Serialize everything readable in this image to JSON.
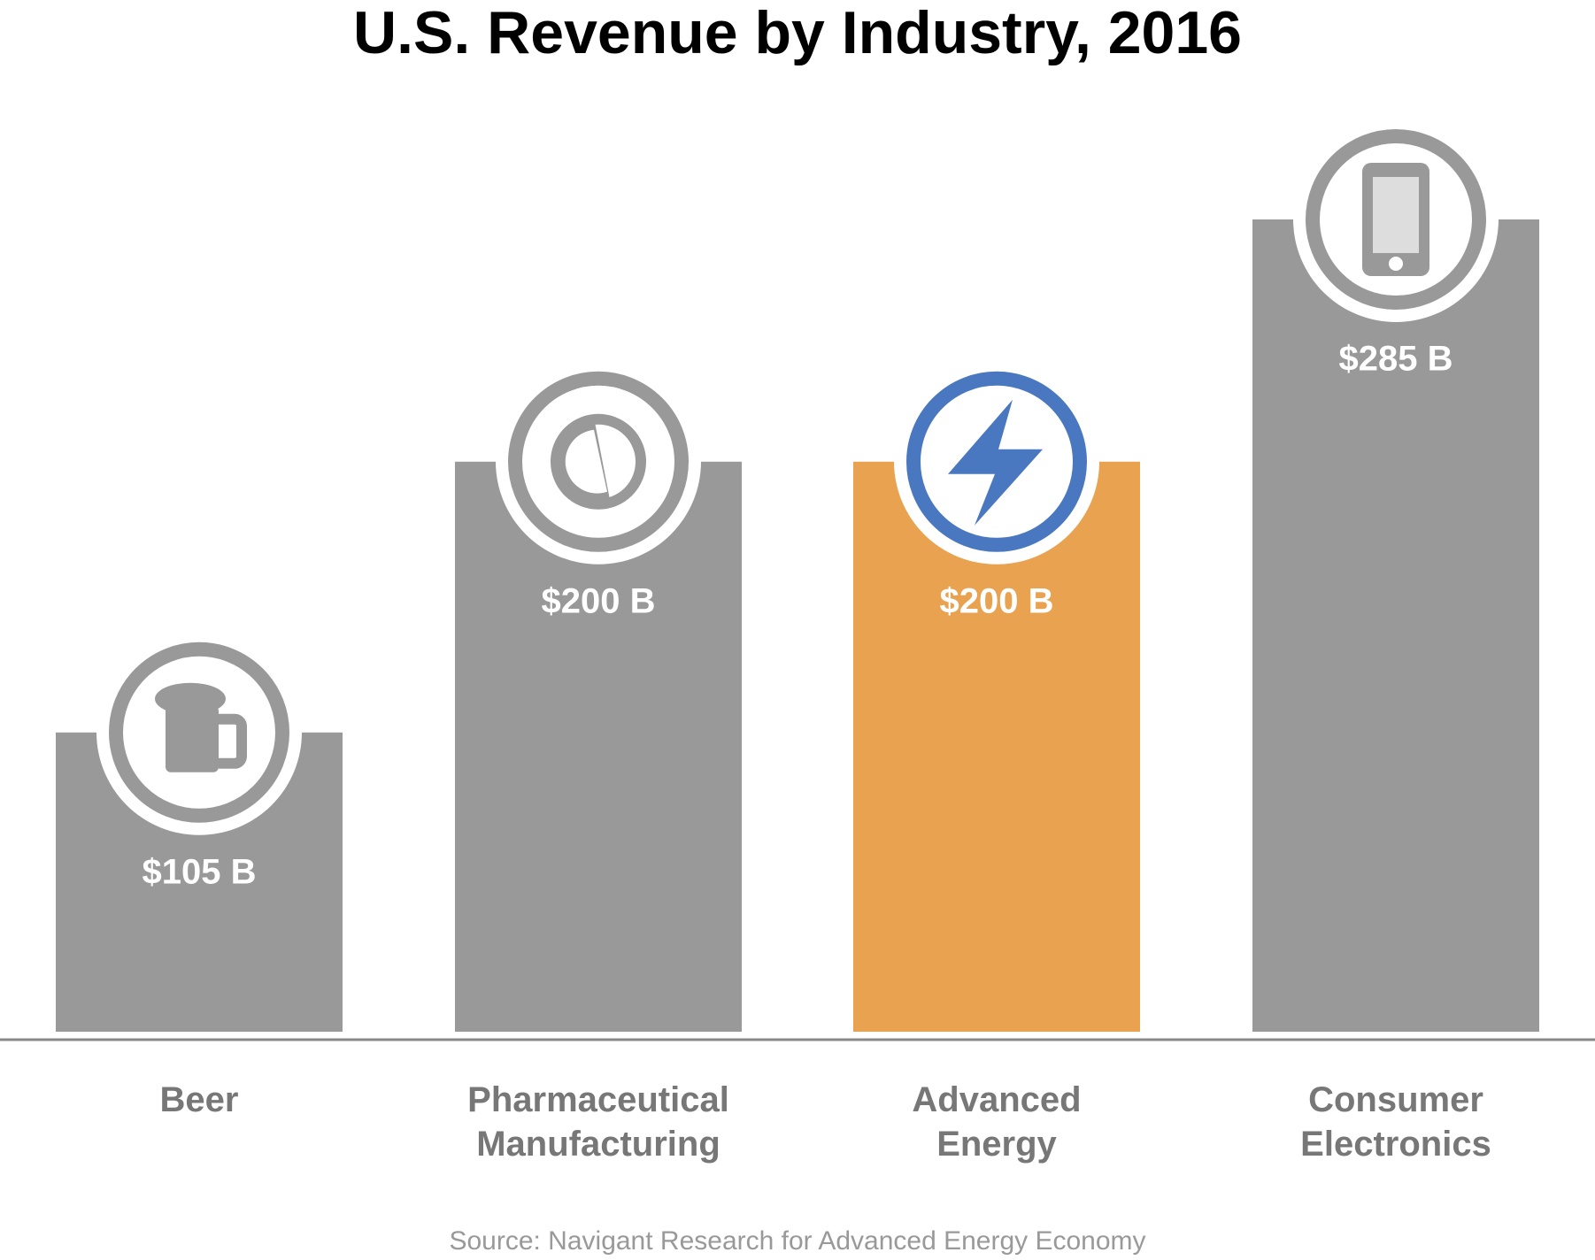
{
  "chart_data": {
    "type": "bar",
    "title": "U.S. Revenue by Industry, 2016",
    "categories": [
      "Beer",
      "Pharmaceutical Manufacturing",
      "Advanced Energy",
      "Consumer Electronics"
    ],
    "values": [
      105,
      200,
      200,
      285
    ],
    "value_labels": [
      "$105 B",
      "$200 B",
      "$200 B",
      "$285 B"
    ],
    "colors": [
      "#999999",
      "#999999",
      "#e8a250",
      "#999999"
    ],
    "ring_colors": [
      "#999999",
      "#999999",
      "#4a78c0",
      "#999999"
    ],
    "source": "Source: Navigant Research for Advanced Energy Economy"
  }
}
